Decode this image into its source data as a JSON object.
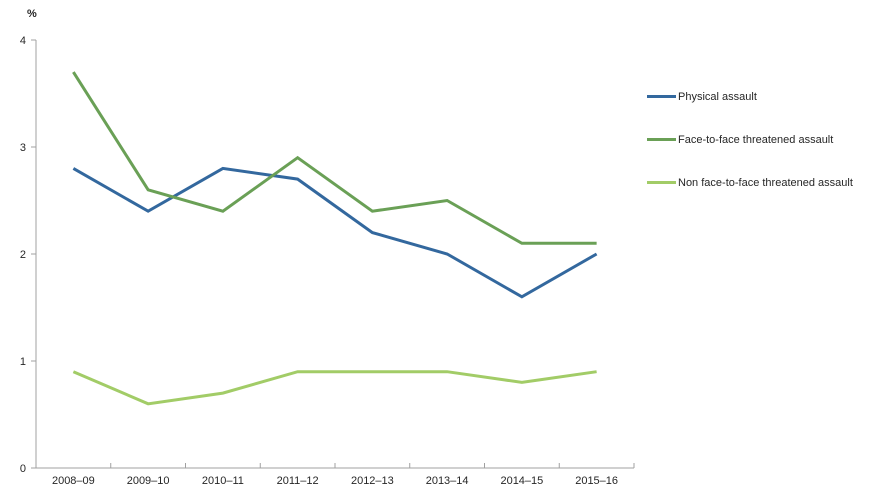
{
  "chart_data": {
    "type": "line",
    "title": "",
    "xlabel": "",
    "ylabel": "%",
    "categories": [
      "2008–09",
      "2009–10",
      "2010–11",
      "2011–12",
      "2012–13",
      "2013–14",
      "2014–15",
      "2015–16"
    ],
    "series": [
      {
        "name": "Physical assault",
        "color": "#33689e",
        "values": [
          2.8,
          2.4,
          2.8,
          2.7,
          2.2,
          2.0,
          1.6,
          2.0
        ]
      },
      {
        "name": "Face-to-face threatened assault",
        "color": "#6aa056",
        "values": [
          3.7,
          2.6,
          2.4,
          2.9,
          2.4,
          2.5,
          2.1,
          2.1
        ]
      },
      {
        "name": "Non face-to-face threatened assault",
        "color": "#a2cc67",
        "values": [
          0.9,
          0.6,
          0.7,
          0.9,
          0.9,
          0.9,
          0.8,
          0.9
        ]
      }
    ],
    "ylim": [
      0,
      4
    ],
    "yticks": [
      0,
      1,
      2,
      3,
      4
    ],
    "grid": false,
    "legend_position": "right",
    "axis_color": "#a0a0a0",
    "label_color": "#262626",
    "line_width": 3
  }
}
